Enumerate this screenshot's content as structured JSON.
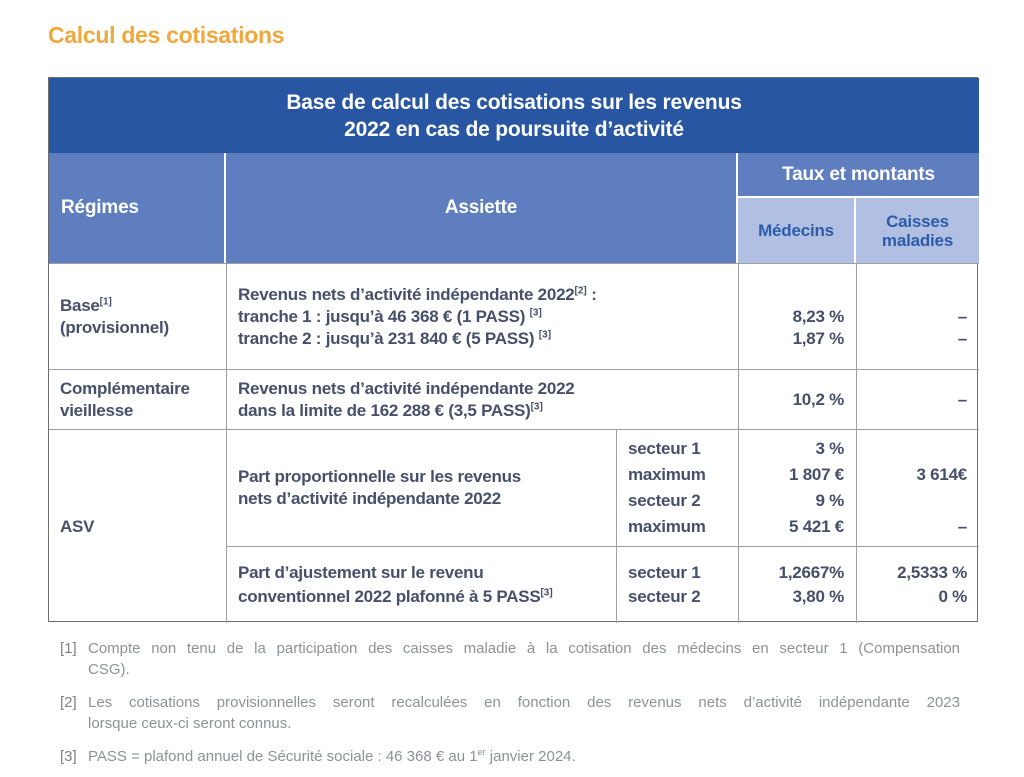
{
  "page_title": "Calcul des cotisations",
  "table": {
    "title_l1": "Base de calcul des cotisations sur les revenus",
    "title_l2": "2022 en cas de poursuite d’activité",
    "headers": {
      "regimes": "Régimes",
      "assiette": "Assiette",
      "taux": "Taux et montants",
      "medecins": "Médecins",
      "caisses": "Caisses maladies"
    },
    "rows": {
      "base": {
        "regime_name": "Base",
        "regime_name_sup": "[1]",
        "regime_qualifier": "(provisionnel)",
        "assiette_intro": "Revenus nets d’activité indépendante 2022",
        "assiette_intro_sup": "[2]",
        "assiette_intro_colon": " :",
        "tranche1": "tranche 1 : jusqu’à 46 368 € (1 PASS) ",
        "tranche1_sup": "[3]",
        "tranche2": "tranche 2 : jusqu’à 231 840 € (5 PASS) ",
        "tranche2_sup": "[3]",
        "medecins": [
          "8,23 %",
          "1,87 %"
        ],
        "caisses": [
          "–",
          "–"
        ]
      },
      "complementaire": {
        "regime_l1": "Complémentaire",
        "regime_l2": "vieillesse",
        "assiette_l1": "Revenus nets d’activité indépendante 2022",
        "assiette_l2": "dans la limite de 162 288 € (3,5 PASS)",
        "assiette_l2_sup": "[3]",
        "medecins": "10,2 %",
        "caisses": "–"
      },
      "asv": {
        "regime_name": "ASV",
        "proportionnelle": {
          "assiette_l1": "Part proportionnelle sur les revenus",
          "assiette_l2": "nets d’activité indépendante 2022",
          "lignes": [
            "secteur 1",
            "maximum",
            "secteur 2",
            "maximum"
          ],
          "medecins": [
            "3 %",
            "1 807 €",
            "9 %",
            "5 421 €"
          ],
          "caisses": [
            "3 614€",
            "–"
          ]
        },
        "ajustement": {
          "assiette_l1": "Part d’ajustement sur le revenu",
          "assiette_l2": "conventionnel 2022 plafonné à 5 PASS",
          "assiette_l2_sup": "[3]",
          "lignes": [
            "secteur 1",
            "secteur 2"
          ],
          "medecins": [
            "1,2667%",
            "3,80 %"
          ],
          "caisses": [
            "2,5333 %",
            "0 %"
          ]
        }
      }
    }
  },
  "footnotes": [
    {
      "marker": "[1]",
      "line1": "Compte non tenu de la participation des caisses maladie à la cotisation des médecins en secteur 1 (Compensation",
      "line2": "CSG)."
    },
    {
      "marker": "[2]",
      "line1": "Les cotisations provisionnelles seront recalculées en fonction des revenus nets d’activité indépendante 2023",
      "line2": "lorsque ceux-ci seront connus."
    },
    {
      "marker": "[3]",
      "pre": "PASS = plafond annuel de Sécurité sociale : 46 368 € au 1",
      "sup": "er",
      "post": " janvier 2024."
    }
  ],
  "colors": {
    "accent_orange": "#f0a83c",
    "header_dark_blue": "#2856a3",
    "header_medium_blue": "#5e7ec0",
    "header_light_blue": "#b0bfe2",
    "header_text": "#ffffff",
    "subheader_text": "#2d5ca8",
    "body_text": "#47506a",
    "footnote_text": "#8e9296",
    "footnote_marker": "#7e8287",
    "border_inner": "#a0a0a0",
    "border_outer": "#6e6e6e"
  }
}
